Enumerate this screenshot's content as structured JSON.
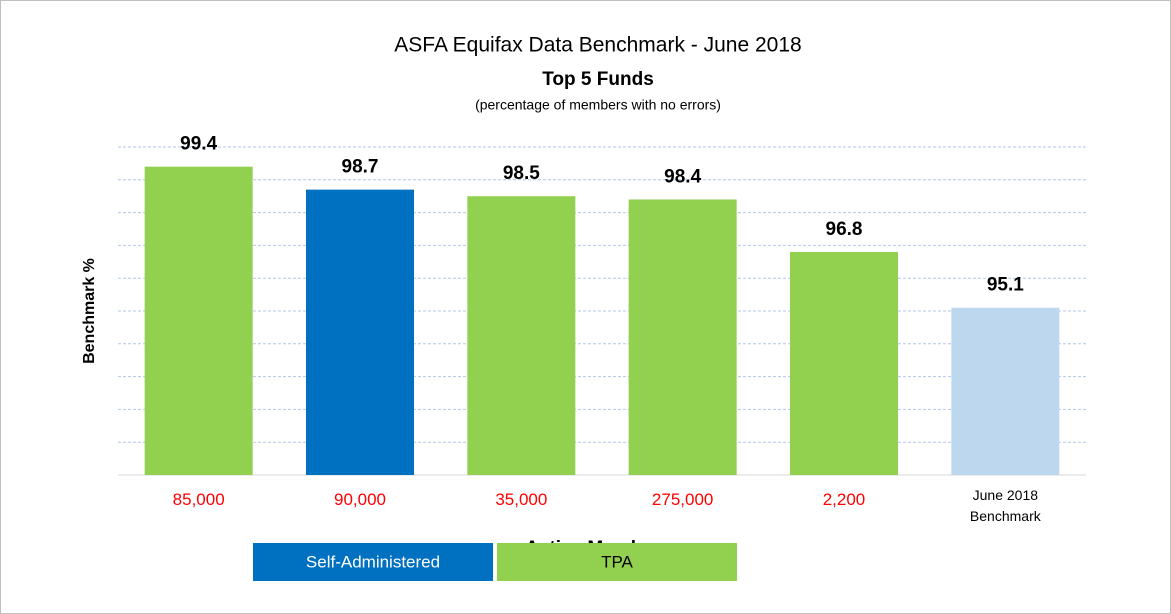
{
  "chart_data": {
    "type": "bar",
    "title": "ASFA Equifax Data Benchmark - June 2018",
    "subtitle": "Top 5 Funds",
    "note": "(percentage of members with no errors)",
    "x_label": "Active Members",
    "y_label": "Benchmark %",
    "categories": [
      "85,000",
      "90,000",
      "35,000",
      "275,000",
      "2,200",
      "June 2018 Benchmark"
    ],
    "category_colors": [
      "#ff0000",
      "#ff0000",
      "#ff0000",
      "#ff0000",
      "#ff0000",
      "#000000"
    ],
    "values": [
      99.4,
      98.7,
      98.5,
      98.4,
      96.8,
      95.1
    ],
    "colors": [
      "#92d050",
      "#0070c0",
      "#92d050",
      "#92d050",
      "#92d050",
      "#bdd7ee"
    ],
    "ylim": [
      90,
      100
    ],
    "yticks": [
      90,
      91,
      92,
      93,
      94,
      95,
      96,
      97,
      98,
      99,
      100
    ],
    "grid": true,
    "legend": [
      {
        "name": "Self-Administered",
        "color": "#0070c0",
        "text_color": "#ffffff"
      },
      {
        "name": "TPA",
        "color": "#92d050",
        "text_color": "#000000"
      }
    ]
  }
}
